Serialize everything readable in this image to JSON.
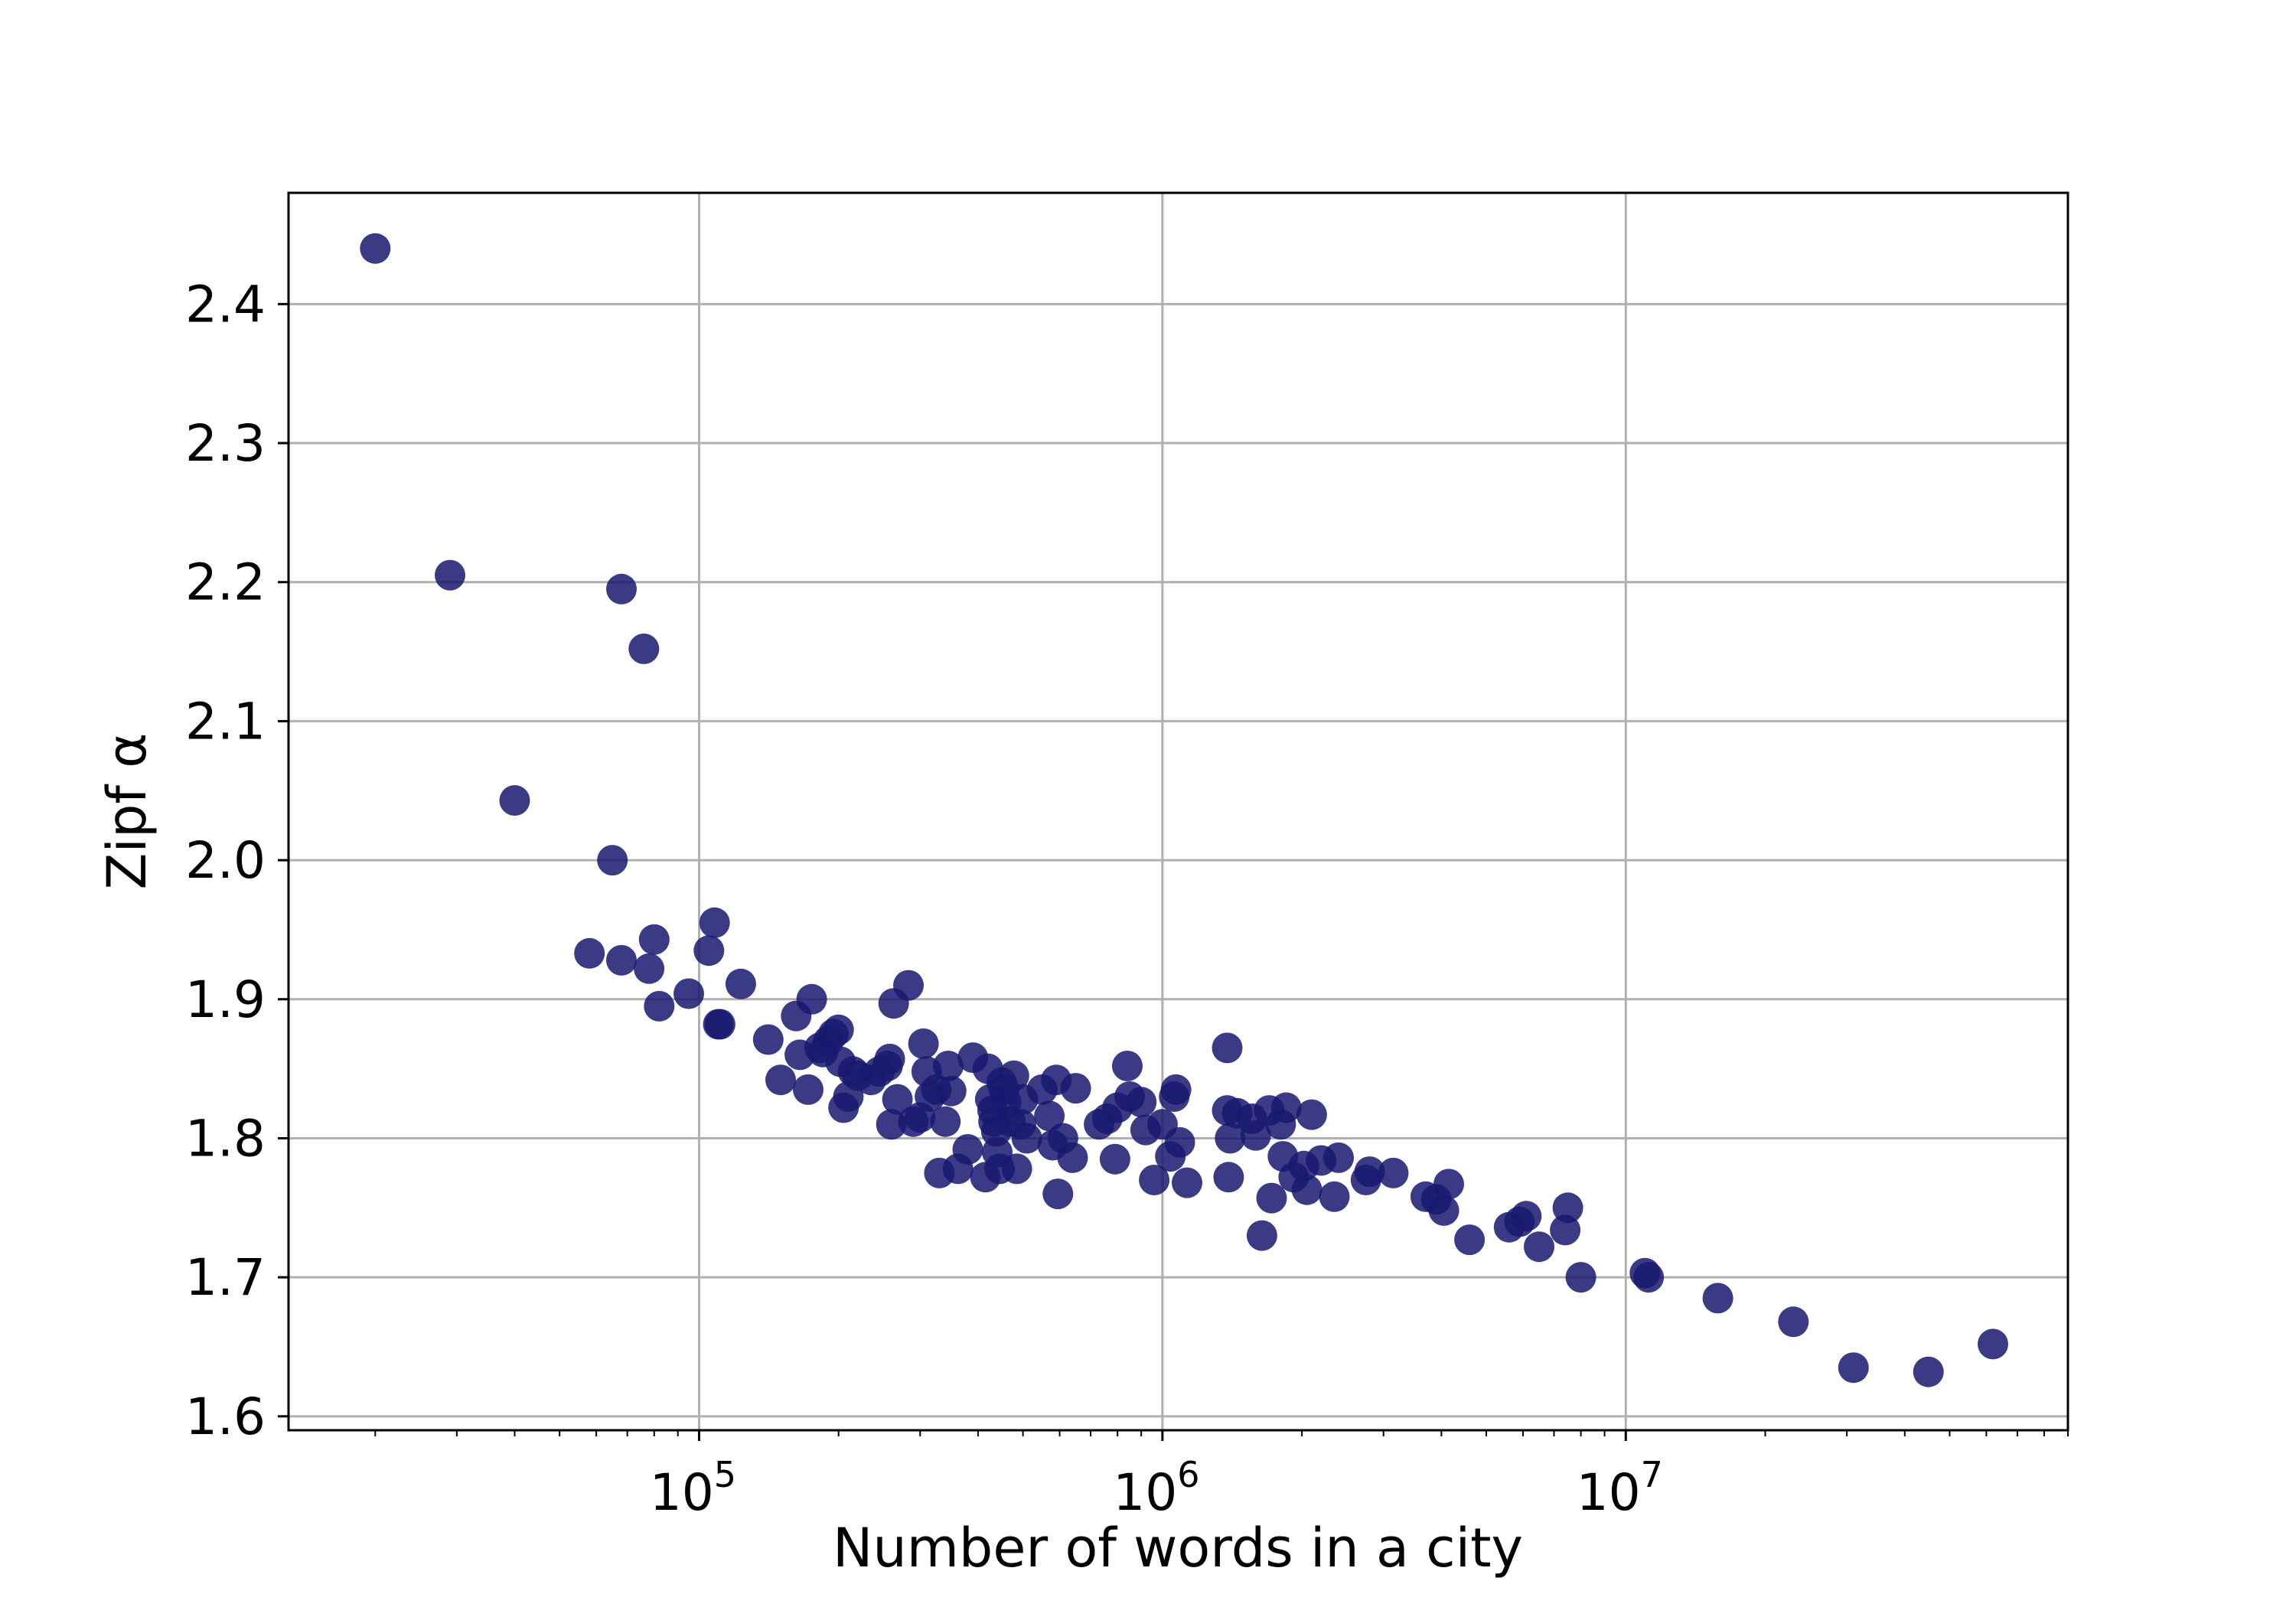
{
  "chart_data": {
    "type": "scatter",
    "xlabel": "Number of words in a city",
    "ylabel": "Zipf α",
    "x_scale": "log",
    "xlim": [
      13000,
      90000000
    ],
    "ylim": [
      1.59,
      2.48
    ],
    "x_ticks": [
      {
        "value": 100000,
        "base": "10",
        "exp": "5"
      },
      {
        "value": 1000000,
        "base": "10",
        "exp": "6"
      },
      {
        "value": 10000000,
        "base": "10",
        "exp": "7"
      }
    ],
    "y_ticks": [
      "1.6",
      "1.7",
      "1.8",
      "1.9",
      "2.0",
      "2.1",
      "2.2",
      "2.3",
      "2.4"
    ],
    "grid": true,
    "marker_color": "#191970",
    "points": [
      [
        20000,
        2.44
      ],
      [
        29000,
        2.205
      ],
      [
        68000,
        2.195
      ],
      [
        76000,
        2.152
      ],
      [
        40000,
        2.043
      ],
      [
        65000,
        2.0
      ],
      [
        58000,
        1.933
      ],
      [
        68000,
        1.928
      ],
      [
        78000,
        1.922
      ],
      [
        80000,
        1.943
      ],
      [
        82000,
        1.895
      ],
      [
        95000,
        1.904
      ],
      [
        105000,
        1.935
      ],
      [
        108000,
        1.955
      ],
      [
        111000,
        1.882
      ],
      [
        110000,
        1.882
      ],
      [
        123000,
        1.911
      ],
      [
        141000,
        1.871
      ],
      [
        150000,
        1.842
      ],
      [
        162000,
        1.888
      ],
      [
        165000,
        1.86
      ],
      [
        172000,
        1.835
      ],
      [
        175000,
        1.9
      ],
      [
        182000,
        1.865
      ],
      [
        185000,
        1.862
      ],
      [
        190000,
        1.87
      ],
      [
        195000,
        1.875
      ],
      [
        200000,
        1.878
      ],
      [
        202000,
        1.855
      ],
      [
        205000,
        1.822
      ],
      [
        210000,
        1.83
      ],
      [
        215000,
        1.848
      ],
      [
        220000,
        1.845
      ],
      [
        235000,
        1.842
      ],
      [
        245000,
        1.848
      ],
      [
        255000,
        1.852
      ],
      [
        258000,
        1.857
      ],
      [
        260000,
        1.81
      ],
      [
        263000,
        1.897
      ],
      [
        268000,
        1.828
      ],
      [
        283000,
        1.91
      ],
      [
        290000,
        1.812
      ],
      [
        300000,
        1.815
      ],
      [
        305000,
        1.868
      ],
      [
        310000,
        1.848
      ],
      [
        315000,
        1.83
      ],
      [
        325000,
        1.835
      ],
      [
        330000,
        1.775
      ],
      [
        340000,
        1.812
      ],
      [
        345000,
        1.852
      ],
      [
        350000,
        1.834
      ],
      [
        362000,
        1.778
      ],
      [
        380000,
        1.792
      ],
      [
        390000,
        1.858
      ],
      [
        415000,
        1.772
      ],
      [
        420000,
        1.85
      ],
      [
        425000,
        1.828
      ],
      [
        430000,
        1.82
      ],
      [
        432000,
        1.812
      ],
      [
        438000,
        1.805
      ],
      [
        440000,
        1.79
      ],
      [
        445000,
        1.778
      ],
      [
        450000,
        1.84
      ],
      [
        455000,
        1.835
      ],
      [
        460000,
        1.826
      ],
      [
        470000,
        1.812
      ],
      [
        478000,
        1.845
      ],
      [
        485000,
        1.778
      ],
      [
        495000,
        1.81
      ],
      [
        500000,
        1.828
      ],
      [
        510000,
        1.8
      ],
      [
        550000,
        1.835
      ],
      [
        570000,
        1.816
      ],
      [
        580000,
        1.795
      ],
      [
        590000,
        1.842
      ],
      [
        595000,
        1.76
      ],
      [
        610000,
        1.8
      ],
      [
        640000,
        1.786
      ],
      [
        650000,
        1.836
      ],
      [
        730000,
        1.81
      ],
      [
        760000,
        1.814
      ],
      [
        790000,
        1.785
      ],
      [
        800000,
        1.822
      ],
      [
        840000,
        1.852
      ],
      [
        850000,
        1.83
      ],
      [
        900000,
        1.826
      ],
      [
        920000,
        1.806
      ],
      [
        960000,
        1.77
      ],
      [
        1000000,
        1.81
      ],
      [
        1040000,
        1.787
      ],
      [
        1060000,
        1.83
      ],
      [
        1070000,
        1.835
      ],
      [
        1090000,
        1.797
      ],
      [
        1130000,
        1.768
      ],
      [
        1380000,
        1.865
      ],
      [
        1380000,
        1.82
      ],
      [
        1390000,
        1.772
      ],
      [
        1400000,
        1.8
      ],
      [
        1450000,
        1.818
      ],
      [
        1560000,
        1.814
      ],
      [
        1590000,
        1.802
      ],
      [
        1640000,
        1.73
      ],
      [
        1700000,
        1.82
      ],
      [
        1720000,
        1.757
      ],
      [
        1800000,
        1.81
      ],
      [
        1820000,
        1.787
      ],
      [
        1850000,
        1.822
      ],
      [
        1920000,
        1.772
      ],
      [
        2020000,
        1.78
      ],
      [
        2050000,
        1.763
      ],
      [
        2100000,
        1.817
      ],
      [
        2200000,
        1.784
      ],
      [
        2350000,
        1.758
      ],
      [
        2400000,
        1.786
      ],
      [
        2750000,
        1.77
      ],
      [
        2800000,
        1.776
      ],
      [
        3150000,
        1.775
      ],
      [
        3700000,
        1.758
      ],
      [
        3900000,
        1.756
      ],
      [
        4050000,
        1.748
      ],
      [
        4150000,
        1.767
      ],
      [
        4600000,
        1.727
      ],
      [
        5600000,
        1.736
      ],
      [
        5900000,
        1.74
      ],
      [
        6100000,
        1.744
      ],
      [
        6500000,
        1.722
      ],
      [
        7400000,
        1.734
      ],
      [
        7500000,
        1.75
      ],
      [
        8000000,
        1.7
      ],
      [
        11000000,
        1.703
      ],
      [
        11200000,
        1.7
      ],
      [
        15800000,
        1.685
      ],
      [
        23000000,
        1.668
      ],
      [
        31000000,
        1.635
      ],
      [
        45000000,
        1.632
      ],
      [
        62000000,
        1.652
      ]
    ]
  }
}
